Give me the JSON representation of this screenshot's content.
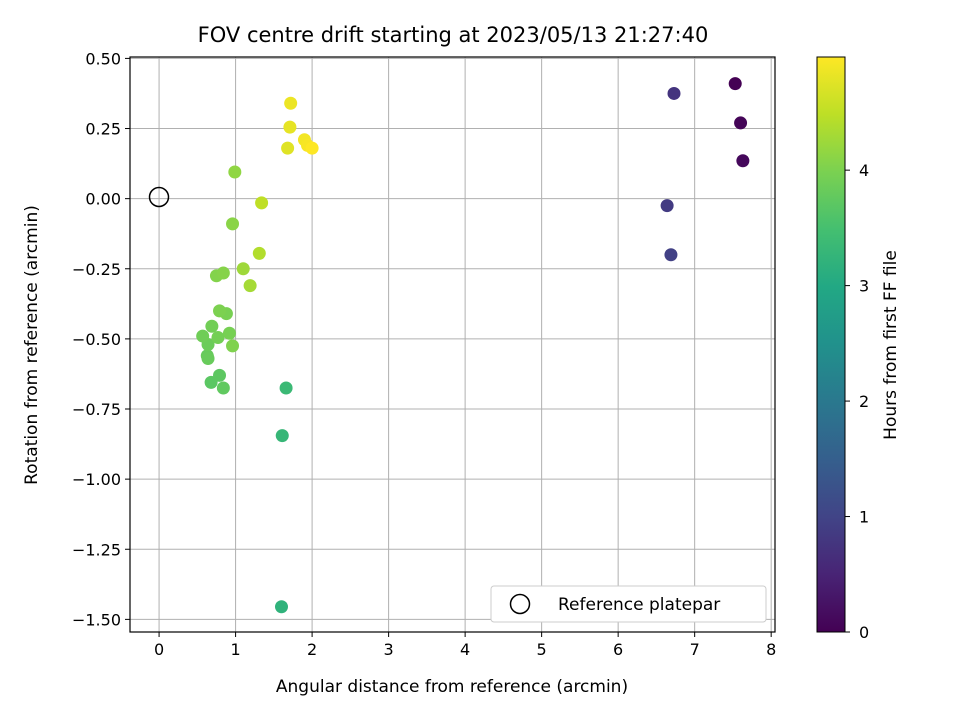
{
  "chart_data": {
    "type": "scatter",
    "title": "FOV centre drift starting at 2023/05/13 21:27:40",
    "xlabel": "Angular distance from reference (arcmin)",
    "ylabel": "Rotation from reference (arcmin)",
    "xlim": [
      -0.38,
      8.05
    ],
    "ylim": [
      -1.545,
      0.505
    ],
    "xticks": [
      0,
      1,
      2,
      3,
      4,
      5,
      6,
      7,
      8
    ],
    "yticks": [
      0.5,
      0.25,
      0.0,
      -0.25,
      -0.5,
      -0.75,
      -1.0,
      -1.25,
      -1.5
    ],
    "xtick_labels": [
      "0",
      "1",
      "2",
      "3",
      "4",
      "5",
      "6",
      "7",
      "8"
    ],
    "ytick_labels": [
      "0.50",
      "0.25",
      "0.00",
      "−0.25",
      "−0.50",
      "−0.75",
      "−1.00",
      "−1.25",
      "−1.50"
    ],
    "grid": true,
    "reference": {
      "x": 0.0,
      "y": 0.0,
      "label": "Reference platepar"
    },
    "legend_position": "lower-right",
    "colorbar": {
      "label": "Hours from first FF file",
      "colormap": "viridis",
      "range": [
        0,
        4.98
      ],
      "ticks": [
        0,
        1,
        2,
        3,
        4
      ],
      "tick_labels": [
        "0",
        "1",
        "2",
        "3",
        "4"
      ]
    },
    "points": [
      {
        "x": 7.53,
        "y": 0.41,
        "h": 0.0
      },
      {
        "x": 7.6,
        "y": 0.27,
        "h": 0.05
      },
      {
        "x": 7.63,
        "y": 0.135,
        "h": 0.1
      },
      {
        "x": 6.73,
        "y": 0.375,
        "h": 0.75
      },
      {
        "x": 6.64,
        "y": -0.025,
        "h": 0.85
      },
      {
        "x": 6.69,
        "y": -0.2,
        "h": 0.95
      },
      {
        "x": 1.6,
        "y": -1.455,
        "h": 3.2
      },
      {
        "x": 1.61,
        "y": -0.845,
        "h": 3.3
      },
      {
        "x": 1.66,
        "y": -0.675,
        "h": 3.35
      },
      {
        "x": 0.68,
        "y": -0.655,
        "h": 3.7
      },
      {
        "x": 0.79,
        "y": -0.63,
        "h": 3.72
      },
      {
        "x": 0.84,
        "y": -0.675,
        "h": 3.75
      },
      {
        "x": 0.63,
        "y": -0.56,
        "h": 3.8
      },
      {
        "x": 0.64,
        "y": -0.57,
        "h": 3.82
      },
      {
        "x": 0.64,
        "y": -0.52,
        "h": 3.85
      },
      {
        "x": 0.57,
        "y": -0.49,
        "h": 3.88
      },
      {
        "x": 0.69,
        "y": -0.455,
        "h": 3.9
      },
      {
        "x": 0.77,
        "y": -0.495,
        "h": 3.92
      },
      {
        "x": 0.92,
        "y": -0.48,
        "h": 3.95
      },
      {
        "x": 0.88,
        "y": -0.41,
        "h": 3.97
      },
      {
        "x": 0.79,
        "y": -0.4,
        "h": 4.0
      },
      {
        "x": 0.96,
        "y": -0.525,
        "h": 4.02
      },
      {
        "x": 0.75,
        "y": -0.275,
        "h": 4.05
      },
      {
        "x": 0.84,
        "y": -0.265,
        "h": 4.07
      },
      {
        "x": 0.96,
        "y": -0.09,
        "h": 4.1
      },
      {
        "x": 0.99,
        "y": 0.095,
        "h": 4.15
      },
      {
        "x": 1.1,
        "y": -0.25,
        "h": 4.25
      },
      {
        "x": 1.19,
        "y": -0.31,
        "h": 4.3
      },
      {
        "x": 1.31,
        "y": -0.195,
        "h": 4.4
      },
      {
        "x": 1.34,
        "y": -0.015,
        "h": 4.5
      },
      {
        "x": 1.68,
        "y": 0.18,
        "h": 4.75
      },
      {
        "x": 1.71,
        "y": 0.255,
        "h": 4.8
      },
      {
        "x": 1.72,
        "y": 0.34,
        "h": 4.85
      },
      {
        "x": 1.9,
        "y": 0.21,
        "h": 4.9
      },
      {
        "x": 1.94,
        "y": 0.19,
        "h": 4.93
      },
      {
        "x": 2.0,
        "y": 0.18,
        "h": 4.98
      }
    ]
  }
}
